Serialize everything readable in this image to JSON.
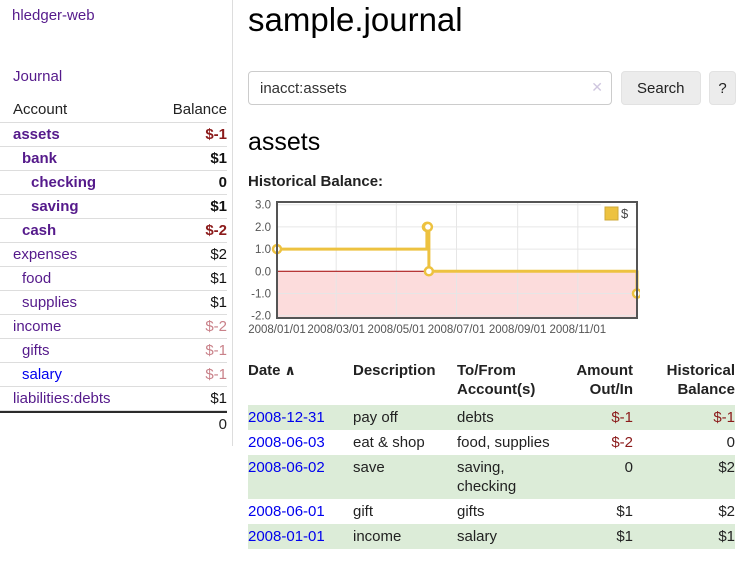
{
  "app": {
    "brand": "hledger-web",
    "nav_journal": "Journal"
  },
  "sidebar": {
    "account_header": "Account",
    "balance_header": "Balance",
    "accounts": [
      {
        "name": "assets",
        "depth": 1,
        "bold": true,
        "balance": "$-1",
        "balance_class": "neg"
      },
      {
        "name": "bank",
        "depth": 2,
        "bold": true,
        "balance": "$1",
        "balance_class": ""
      },
      {
        "name": "checking",
        "depth": 3,
        "bold": true,
        "balance": "0",
        "balance_class": ""
      },
      {
        "name": "saving",
        "depth": 3,
        "bold": true,
        "balance": "$1",
        "balance_class": ""
      },
      {
        "name": "cash",
        "depth": 2,
        "bold": true,
        "balance": "$-2",
        "balance_class": "neg"
      },
      {
        "name": "expenses",
        "depth": 1,
        "bold": false,
        "balance": "$2",
        "balance_class": ""
      },
      {
        "name": "food",
        "depth": 2,
        "bold": false,
        "balance": "$1",
        "balance_class": ""
      },
      {
        "name": "supplies",
        "depth": 2,
        "bold": false,
        "balance": "$1",
        "balance_class": ""
      },
      {
        "name": "income",
        "depth": 1,
        "bold": false,
        "balance": "$-2",
        "balance_class": "negfade"
      },
      {
        "name": "gifts",
        "depth": 2,
        "bold": false,
        "balance": "$-1",
        "balance_class": "negfade"
      },
      {
        "name": "salary",
        "depth": 2,
        "bold": false,
        "balance": "$-1",
        "balance_class": "negfade",
        "link_color": "#0000ee"
      },
      {
        "name": "liabilities:debts",
        "depth": 1,
        "bold": false,
        "balance": "$1",
        "balance_class": ""
      }
    ],
    "total": "0"
  },
  "header": {
    "title": "sample.journal"
  },
  "search": {
    "value": "inacct:assets",
    "clear_icon": "✕",
    "button_label": "Search",
    "help_label": "?"
  },
  "account_page": {
    "title": "assets",
    "chart_label": "Historical Balance:"
  },
  "chart_data": {
    "type": "line",
    "step": true,
    "title": "Historical Balance",
    "series": [
      {
        "name": "$",
        "color": "#edc240",
        "points": [
          [
            "2008-01-01",
            1
          ],
          [
            "2008-06-01",
            2
          ],
          [
            "2008-06-02",
            2
          ],
          [
            "2008-06-03",
            0
          ],
          [
            "2008-12-31",
            -1
          ]
        ]
      }
    ],
    "xlim": [
      "2008-01-01",
      "2008-12-31"
    ],
    "ylim": [
      -2,
      3
    ],
    "y_ticks": [
      3.0,
      2.0,
      1.0,
      0.0,
      -1.0,
      -2.0
    ],
    "x_ticks": [
      "2008/01/01",
      "2008/03/01",
      "2008/05/01",
      "2008/07/01",
      "2008/09/01",
      "2008/11/01"
    ],
    "grid": true,
    "grid_color": "#e6e6e6",
    "border_color": "#545454",
    "tick_label_color": "#545454",
    "negative_region_color": "#fcdcdc",
    "zero_line_color": "#a00000",
    "legend": {
      "label": "$",
      "position": "top-right"
    }
  },
  "register": {
    "headers": {
      "date": "Date",
      "sort_icon": "∧",
      "description": "Description",
      "accounts": "To/From Account(s)",
      "amount": "Amount Out/In",
      "balance": "Historical Balance"
    },
    "rows": [
      {
        "date": "2008-12-31",
        "description": "pay off",
        "accounts": "debts",
        "amount": "$-1",
        "amount_neg": true,
        "balance": "$-1",
        "balance_neg": true,
        "striped": true
      },
      {
        "date": "2008-06-03",
        "description": "eat & shop",
        "accounts": "food, supplies",
        "amount": "$-2",
        "amount_neg": true,
        "balance": "0",
        "balance_neg": false,
        "striped": false
      },
      {
        "date": "2008-06-02",
        "description": "save",
        "accounts": "saving, checking",
        "amount": "0",
        "amount_neg": false,
        "balance": "$2",
        "balance_neg": false,
        "striped": true
      },
      {
        "date": "2008-06-01",
        "description": "gift",
        "accounts": "gifts",
        "amount": "$1",
        "amount_neg": false,
        "balance": "$2",
        "balance_neg": false,
        "striped": false
      },
      {
        "date": "2008-01-01",
        "description": "income",
        "accounts": "salary",
        "amount": "$1",
        "amount_neg": false,
        "balance": "$1",
        "balance_neg": false,
        "striped": true
      }
    ]
  }
}
